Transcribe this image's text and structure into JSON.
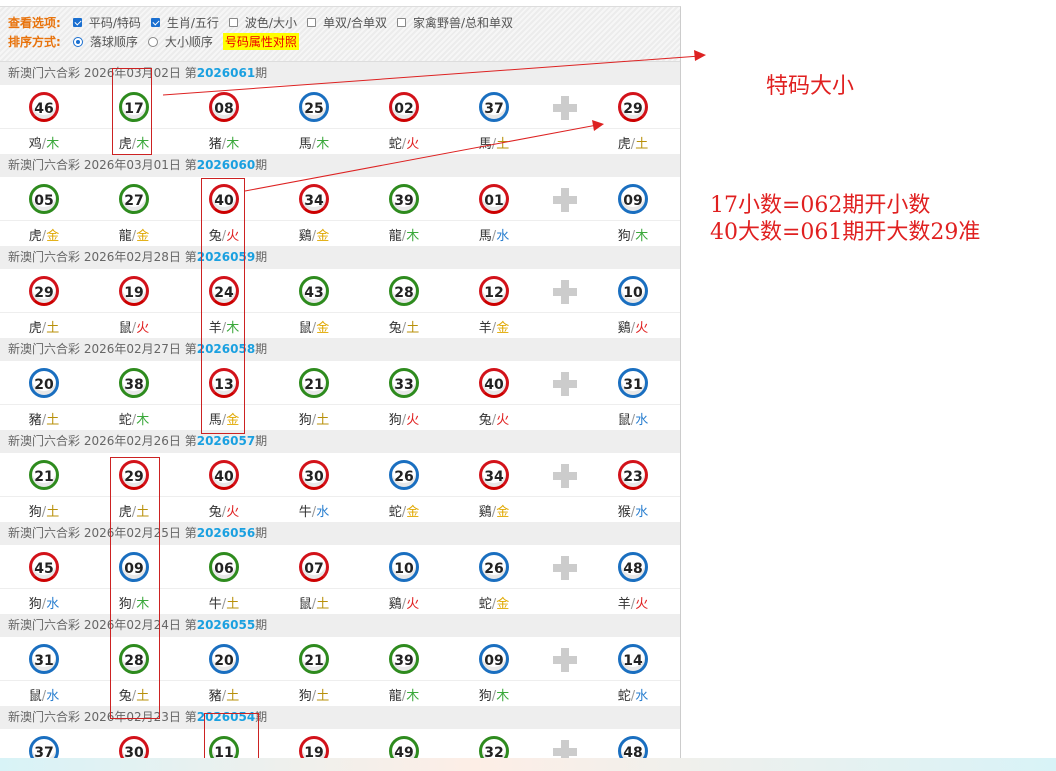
{
  "options": {
    "view_label": "查看选项:",
    "view": [
      {
        "label": "平码/特码",
        "checked": true
      },
      {
        "label": "生肖/五行",
        "checked": true
      },
      {
        "label": "波色/大小",
        "checked": false
      },
      {
        "label": "单双/合单双",
        "checked": false
      },
      {
        "label": "家禽野兽/总和单双",
        "checked": false
      }
    ],
    "sort_label": "排序方式:",
    "sort": [
      {
        "label": "落球顺序",
        "selected": true
      },
      {
        "label": "大小顺序",
        "selected": false
      }
    ],
    "compare_link": "号码属性对照"
  },
  "draws": [
    {
      "prefix": "新澳门六合彩 2026年03月02日 第",
      "issue": "2026061",
      "suffix": "期",
      "balls": [
        [
          "46",
          "red",
          "鸡",
          "木"
        ],
        [
          "17",
          "green",
          "虎",
          "木"
        ],
        [
          "08",
          "red",
          "猪",
          "木"
        ],
        [
          "25",
          "blue",
          "馬",
          "木"
        ],
        [
          "02",
          "red",
          "蛇",
          "火"
        ],
        [
          "37",
          "blue",
          "馬",
          "土"
        ],
        [
          "29",
          "red",
          "虎",
          "土"
        ]
      ]
    },
    {
      "prefix": "新澳门六合彩 2026年03月01日 第",
      "issue": "2026060",
      "suffix": "期",
      "balls": [
        [
          "05",
          "green",
          "虎",
          "金"
        ],
        [
          "27",
          "green",
          "龍",
          "金"
        ],
        [
          "40",
          "red",
          "兔",
          "火"
        ],
        [
          "34",
          "red",
          "鷄",
          "金"
        ],
        [
          "39",
          "green",
          "龍",
          "木"
        ],
        [
          "01",
          "red",
          "馬",
          "水"
        ],
        [
          "09",
          "blue",
          "狗",
          "木"
        ]
      ]
    },
    {
      "prefix": "新澳门六合彩 2026年02月28日 第",
      "issue": "2026059",
      "suffix": "期",
      "balls": [
        [
          "29",
          "red",
          "虎",
          "土"
        ],
        [
          "19",
          "red",
          "鼠",
          "火"
        ],
        [
          "24",
          "red",
          "羊",
          "木"
        ],
        [
          "43",
          "green",
          "鼠",
          "金"
        ],
        [
          "28",
          "green",
          "兔",
          "土"
        ],
        [
          "12",
          "red",
          "羊",
          "金"
        ],
        [
          "10",
          "blue",
          "鷄",
          "火"
        ]
      ]
    },
    {
      "prefix": "新澳门六合彩 2026年02月27日 第",
      "issue": "2026058",
      "suffix": "期",
      "balls": [
        [
          "20",
          "blue",
          "豬",
          "土"
        ],
        [
          "38",
          "green",
          "蛇",
          "木"
        ],
        [
          "13",
          "red",
          "馬",
          "金"
        ],
        [
          "21",
          "green",
          "狗",
          "土"
        ],
        [
          "33",
          "green",
          "狗",
          "火"
        ],
        [
          "40",
          "red",
          "兔",
          "火"
        ],
        [
          "31",
          "blue",
          "鼠",
          "水"
        ]
      ]
    },
    {
      "prefix": "新澳门六合彩 2026年02月26日 第",
      "issue": "2026057",
      "suffix": "期",
      "balls": [
        [
          "21",
          "green",
          "狗",
          "土"
        ],
        [
          "29",
          "red",
          "虎",
          "土"
        ],
        [
          "40",
          "red",
          "兔",
          "火"
        ],
        [
          "30",
          "red",
          "牛",
          "水"
        ],
        [
          "26",
          "blue",
          "蛇",
          "金"
        ],
        [
          "34",
          "red",
          "鷄",
          "金"
        ],
        [
          "23",
          "red",
          "猴",
          "水"
        ]
      ]
    },
    {
      "prefix": "新澳门六合彩 2026年02月25日 第",
      "issue": "2026056",
      "suffix": "期",
      "balls": [
        [
          "45",
          "red",
          "狗",
          "水"
        ],
        [
          "09",
          "blue",
          "狗",
          "木"
        ],
        [
          "06",
          "green",
          "牛",
          "土"
        ],
        [
          "07",
          "red",
          "鼠",
          "土"
        ],
        [
          "10",
          "blue",
          "鷄",
          "火"
        ],
        [
          "26",
          "blue",
          "蛇",
          "金"
        ],
        [
          "48",
          "blue",
          "羊",
          "火"
        ]
      ]
    },
    {
      "prefix": "新澳门六合彩 2026年02月24日 第",
      "issue": "2026055",
      "suffix": "期",
      "balls": [
        [
          "31",
          "blue",
          "鼠",
          "水"
        ],
        [
          "28",
          "green",
          "兔",
          "土"
        ],
        [
          "20",
          "blue",
          "豬",
          "土"
        ],
        [
          "21",
          "green",
          "狗",
          "土"
        ],
        [
          "39",
          "green",
          "龍",
          "木"
        ],
        [
          "09",
          "blue",
          "狗",
          "木"
        ],
        [
          "14",
          "blue",
          "蛇",
          "水"
        ]
      ]
    },
    {
      "prefix": "新澳门六合彩 2026年02月23日 第",
      "issue": "2026054",
      "suffix": "期",
      "balls": [
        [
          "37",
          "blue",
          "",
          ""
        ],
        [
          "30",
          "red",
          "",
          ""
        ],
        [
          "11",
          "green",
          "",
          ""
        ],
        [
          "19",
          "red",
          "",
          ""
        ],
        [
          "49",
          "green",
          "",
          ""
        ],
        [
          "32",
          "green",
          "",
          ""
        ],
        [
          "48",
          "blue",
          "",
          ""
        ]
      ]
    }
  ],
  "annotations": {
    "label1": "特码大小",
    "line1": "17小数=062期开小数",
    "line2": "40大数=061期开大数29准"
  },
  "colors": {
    "red_ball": "#d2121a",
    "blue_ball": "#1a6fc0",
    "green_ball": "#2e8b1e",
    "issue": "#1aa0e0",
    "annotation": "#e02020"
  }
}
